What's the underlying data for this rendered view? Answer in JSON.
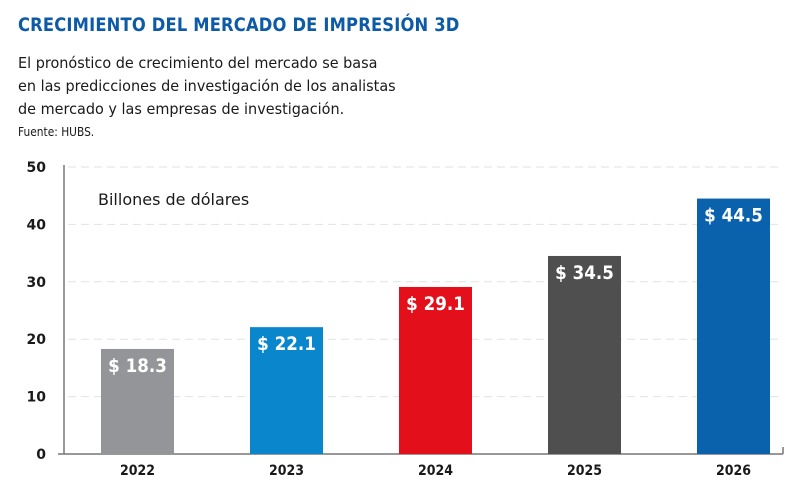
{
  "header": {
    "title": "CRECIMIENTO DEL MERCADO DE IMPRESIÓN 3D",
    "subtitle_lines": [
      "El pronóstico de crecimiento del mercado se basa",
      "en las predicciones de investigación de los analistas",
      "de mercado y las empresas de investigación."
    ],
    "source": "Fuente: HUBS."
  },
  "chart_data": {
    "type": "bar",
    "title": "CRECIMIENTO DEL MERCADO DE IMPRESIÓN 3D",
    "unit_label": "Billones de dólares",
    "categories": [
      "2022",
      "2023",
      "2024",
      "2025",
      "2026"
    ],
    "values": [
      18.3,
      22.1,
      29.1,
      34.5,
      44.5
    ],
    "data_labels": [
      "$ 18.3",
      "$ 22.1",
      "$ 29.1",
      "$ 34.5",
      "$ 44.5"
    ],
    "colors": [
      "#939598",
      "#0a86cc",
      "#e3101b",
      "#4f4f50",
      "#0a62ad"
    ],
    "ylim": [
      0,
      50
    ],
    "yticks": [
      0,
      10,
      20,
      30,
      40,
      50
    ],
    "grid": true,
    "xlabel": "",
    "ylabel": ""
  }
}
